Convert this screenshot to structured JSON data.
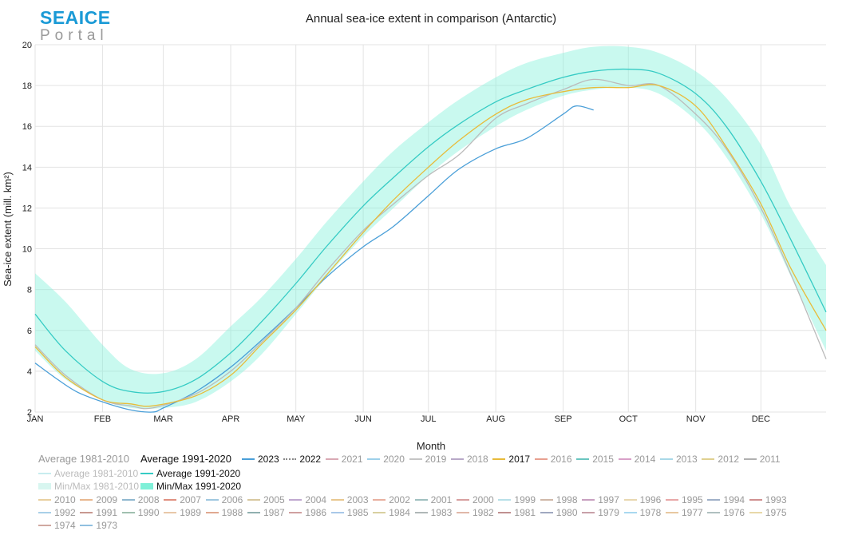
{
  "logo": {
    "top": "SEAICE",
    "bottom": "Portal"
  },
  "chart_data": {
    "type": "line",
    "title": "Annual sea-ice extent in comparison (Antarctic)",
    "xlabel": "Month",
    "ylabel": "Sea-ice extent (mill. km²)",
    "x_tick_labels": [
      "JAN",
      "FEB",
      "MAR",
      "APR",
      "MAY",
      "JUN",
      "JUL",
      "AUG",
      "SEP",
      "OCT",
      "NOV",
      "DEC"
    ],
    "ylim": [
      2,
      20
    ],
    "y_ticks": [
      2,
      4,
      6,
      8,
      10,
      12,
      14,
      16,
      18,
      20
    ],
    "x_range_days": [
      1,
      365
    ],
    "grid": true,
    "legend_position": "bottom",
    "band_1991_2020": {
      "name": "Min/Max 1991-2020",
      "color": "#7ff0d8",
      "points": [
        {
          "day": 1,
          "min": 5.0,
          "max": 8.8
        },
        {
          "day": 15,
          "min": 3.6,
          "max": 7.4
        },
        {
          "day": 32,
          "min": 2.6,
          "max": 5.3
        },
        {
          "day": 45,
          "min": 2.2,
          "max": 4.1
        },
        {
          "day": 60,
          "min": 2.2,
          "max": 3.9
        },
        {
          "day": 75,
          "min": 2.5,
          "max": 4.6
        },
        {
          "day": 91,
          "min": 3.5,
          "max": 6.2
        },
        {
          "day": 105,
          "min": 4.8,
          "max": 7.6
        },
        {
          "day": 121,
          "min": 6.8,
          "max": 9.5
        },
        {
          "day": 135,
          "min": 8.6,
          "max": 11.3
        },
        {
          "day": 152,
          "min": 10.6,
          "max": 13.3
        },
        {
          "day": 166,
          "min": 12.0,
          "max": 14.8
        },
        {
          "day": 182,
          "min": 13.6,
          "max": 16.2
        },
        {
          "day": 196,
          "min": 14.8,
          "max": 17.3
        },
        {
          "day": 213,
          "min": 16.0,
          "max": 18.4
        },
        {
          "day": 227,
          "min": 16.8,
          "max": 19.1
        },
        {
          "day": 244,
          "min": 17.5,
          "max": 19.6
        },
        {
          "day": 258,
          "min": 17.8,
          "max": 19.9
        },
        {
          "day": 274,
          "min": 17.9,
          "max": 19.9
        },
        {
          "day": 288,
          "min": 17.6,
          "max": 19.6
        },
        {
          "day": 305,
          "min": 16.3,
          "max": 18.7
        },
        {
          "day": 319,
          "min": 14.5,
          "max": 17.4
        },
        {
          "day": 335,
          "min": 11.7,
          "max": 15.1
        },
        {
          "day": 349,
          "min": 8.6,
          "max": 12.0
        },
        {
          "day": 365,
          "min": 5.0,
          "max": 9.2
        }
      ]
    },
    "series": [
      {
        "name": "Average 1991-2020",
        "color": "#35cbc4",
        "points": [
          [
            1,
            6.8
          ],
          [
            15,
            5.0
          ],
          [
            32,
            3.5
          ],
          [
            45,
            3.0
          ],
          [
            60,
            3.0
          ],
          [
            75,
            3.6
          ],
          [
            91,
            4.9
          ],
          [
            105,
            6.4
          ],
          [
            121,
            8.3
          ],
          [
            135,
            10.1
          ],
          [
            152,
            12.1
          ],
          [
            166,
            13.5
          ],
          [
            182,
            15.0
          ],
          [
            196,
            16.1
          ],
          [
            213,
            17.2
          ],
          [
            227,
            17.8
          ],
          [
            244,
            18.4
          ],
          [
            258,
            18.7
          ],
          [
            274,
            18.8
          ],
          [
            288,
            18.6
          ],
          [
            305,
            17.6
          ],
          [
            319,
            16.0
          ],
          [
            335,
            13.3
          ],
          [
            349,
            10.4
          ],
          [
            365,
            6.9
          ]
        ]
      },
      {
        "name": "2023",
        "color": "#4a9fd8",
        "points": [
          [
            1,
            4.4
          ],
          [
            10,
            3.7
          ],
          [
            20,
            3.0
          ],
          [
            32,
            2.5
          ],
          [
            45,
            2.1
          ],
          [
            55,
            2.0
          ],
          [
            60,
            2.2
          ],
          [
            75,
            3.0
          ],
          [
            91,
            4.2
          ],
          [
            105,
            5.5
          ],
          [
            121,
            7.1
          ],
          [
            135,
            8.6
          ],
          [
            152,
            10.1
          ],
          [
            166,
            11.1
          ],
          [
            182,
            12.6
          ],
          [
            196,
            13.9
          ],
          [
            213,
            14.9
          ],
          [
            227,
            15.4
          ],
          [
            244,
            16.6
          ],
          [
            250,
            17.0
          ],
          [
            258,
            16.8
          ]
        ]
      },
      {
        "name": "2022",
        "color": "#bbbbbb",
        "points": [
          [
            1,
            5.3
          ],
          [
            15,
            3.8
          ],
          [
            32,
            2.6
          ],
          [
            45,
            2.3
          ],
          [
            55,
            2.2
          ],
          [
            75,
            2.9
          ],
          [
            91,
            4.0
          ],
          [
            105,
            5.4
          ],
          [
            121,
            7.1
          ],
          [
            135,
            8.9
          ],
          [
            152,
            10.9
          ],
          [
            166,
            12.2
          ],
          [
            182,
            13.6
          ],
          [
            196,
            14.6
          ],
          [
            213,
            16.4
          ],
          [
            227,
            17.1
          ],
          [
            244,
            17.8
          ],
          [
            258,
            18.3
          ],
          [
            274,
            18.0
          ],
          [
            288,
            18.0
          ],
          [
            305,
            16.6
          ],
          [
            319,
            14.9
          ],
          [
            335,
            12.0
          ],
          [
            349,
            8.7
          ],
          [
            365,
            4.6
          ]
        ]
      },
      {
        "name": "2017",
        "color": "#e8bb3a",
        "points": [
          [
            1,
            5.2
          ],
          [
            15,
            3.7
          ],
          [
            32,
            2.6
          ],
          [
            45,
            2.4
          ],
          [
            55,
            2.3
          ],
          [
            75,
            2.8
          ],
          [
            91,
            3.8
          ],
          [
            105,
            5.3
          ],
          [
            121,
            7.0
          ],
          [
            135,
            8.7
          ],
          [
            152,
            10.8
          ],
          [
            166,
            12.4
          ],
          [
            182,
            14.0
          ],
          [
            196,
            15.3
          ],
          [
            213,
            16.6
          ],
          [
            227,
            17.3
          ],
          [
            244,
            17.7
          ],
          [
            258,
            17.9
          ],
          [
            274,
            17.9
          ],
          [
            288,
            18.0
          ],
          [
            305,
            17.0
          ],
          [
            319,
            15.0
          ],
          [
            335,
            12.2
          ],
          [
            349,
            9.0
          ],
          [
            365,
            6.0
          ]
        ]
      }
    ]
  },
  "legend": {
    "avg_1981_label": "Average 1981-2010",
    "avg_1991_label": "Average 1991-2020",
    "avg1981_item": "Average 1981-2010",
    "avg1991_item": "Average 1991-2020",
    "minmax1981_item": "Min/Max 1981-2010",
    "minmax1991_item": "Min/Max 1991-2020",
    "years": [
      "2023",
      "2022",
      "2021",
      "2020",
      "2019",
      "2018",
      "2017",
      "2016",
      "2015",
      "2014",
      "2013",
      "2012",
      "2011",
      "2010",
      "2009",
      "2008",
      "2007",
      "2006",
      "2005",
      "2004",
      "2003",
      "2002",
      "2001",
      "2000",
      "1999",
      "1998",
      "1997",
      "1996",
      "1995",
      "1994",
      "1993",
      "1992",
      "1991",
      "1990",
      "1989",
      "1988",
      "1987",
      "1986",
      "1985",
      "1984",
      "1983",
      "1982",
      "1981",
      "1980",
      "1979",
      "1978",
      "1977",
      "1976",
      "1975",
      "1974",
      "1973"
    ],
    "highlighted_years": [
      "2023",
      "2022",
      "2017"
    ],
    "year_colors": [
      "#4a9fd8",
      "#888888",
      "#d9a9b4",
      "#9ed0ea",
      "#c5c5c5",
      "#b8a8c8",
      "#e8bb3a",
      "#e8a090",
      "#6ac6c0",
      "#d8a0c8",
      "#a8d8e8",
      "#e0d090",
      "#b0b0b0",
      "#e8d0a0",
      "#e8b890",
      "#90b8d0",
      "#e09080",
      "#a0c8e0",
      "#d8c8a0",
      "#c0a8d0",
      "#e8c890",
      "#e8b0a0",
      "#a0c0c0",
      "#d8a0a0",
      "#b8e0e8",
      "#d0b8a8",
      "#c8a0c0",
      "#e8d8b0",
      "#e8a8a8",
      "#a0b0c8",
      "#d09090",
      "#a8d0e8",
      "#c89890",
      "#a0c0b0",
      "#e8c8a8",
      "#e0a890",
      "#90b0b0",
      "#d0a0a0",
      "#a8c8e8",
      "#d8d0a0",
      "#b0b8b8",
      "#e0b8a8",
      "#c09090",
      "#a0a8c0",
      "#c8a0a8",
      "#a8d8f0",
      "#e8c8a0",
      "#b0c0c0",
      "#e8d8a8",
      "#d0a8a0",
      "#90c0e0"
    ]
  }
}
